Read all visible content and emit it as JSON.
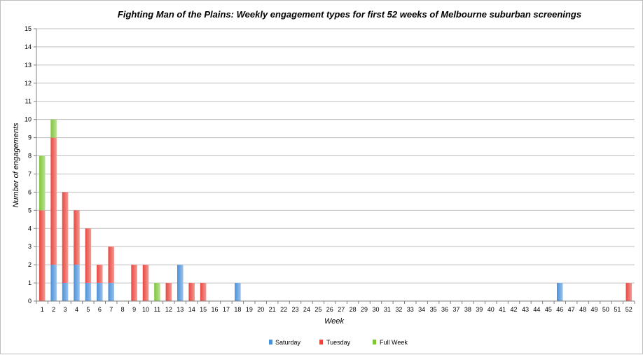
{
  "chart_data": {
    "type": "bar",
    "stacked": true,
    "title": "Fighting Man of the Plains: Weekly engagement types for first 52 weeks of Melbourne suburban screenings",
    "xlabel": "Week",
    "ylabel": "Number of engagements",
    "ylim": [
      0,
      15
    ],
    "yticks": [
      "0",
      "1",
      "2",
      "3",
      "4",
      "5",
      "6",
      "7",
      "8",
      "9",
      "10",
      "11",
      "12",
      "13",
      "14",
      "15"
    ],
    "categories": [
      "1",
      "2",
      "3",
      "4",
      "5",
      "6",
      "7",
      "8",
      "9",
      "10",
      "11",
      "12",
      "13",
      "14",
      "15",
      "16",
      "17",
      "18",
      "19",
      "20",
      "21",
      "22",
      "23",
      "24",
      "25",
      "26",
      "27",
      "28",
      "29",
      "30",
      "31",
      "32",
      "33",
      "34",
      "35",
      "36",
      "37",
      "38",
      "39",
      "40",
      "41",
      "42",
      "43",
      "44",
      "45",
      "46",
      "47",
      "48",
      "49",
      "50",
      "51",
      "52"
    ],
    "grid": true,
    "legend_position": "bottom",
    "series": [
      {
        "name": "Saturday",
        "color": "#4a90d9",
        "values": [
          0,
          2,
          1,
          2,
          1,
          1,
          1,
          0,
          0,
          0,
          0,
          0,
          2,
          0,
          0,
          0,
          0,
          1,
          0,
          0,
          0,
          0,
          0,
          0,
          0,
          0,
          0,
          0,
          0,
          0,
          0,
          0,
          0,
          0,
          0,
          0,
          0,
          0,
          0,
          0,
          0,
          0,
          0,
          0,
          0,
          1,
          0,
          0,
          0,
          0,
          0,
          0
        ]
      },
      {
        "name": "Tuesday",
        "color": "#e8473f",
        "values": [
          5,
          7,
          5,
          3,
          3,
          1,
          2,
          0,
          2,
          2,
          0,
          1,
          0,
          1,
          1,
          0,
          0,
          0,
          0,
          0,
          0,
          0,
          0,
          0,
          0,
          0,
          0,
          0,
          0,
          0,
          0,
          0,
          0,
          0,
          0,
          0,
          0,
          0,
          0,
          0,
          0,
          0,
          0,
          0,
          0,
          0,
          0,
          0,
          0,
          0,
          0,
          1
        ]
      },
      {
        "name": "Full Week",
        "color": "#7fc63a",
        "values": [
          3,
          1,
          0,
          0,
          0,
          0,
          0,
          0,
          0,
          0,
          1,
          0,
          0,
          0,
          0,
          0,
          0,
          0,
          0,
          0,
          0,
          0,
          0,
          0,
          0,
          0,
          0,
          0,
          0,
          0,
          0,
          0,
          0,
          0,
          0,
          0,
          0,
          0,
          0,
          0,
          0,
          0,
          0,
          0,
          0,
          0,
          0,
          0,
          0,
          0,
          0,
          0
        ]
      }
    ]
  }
}
